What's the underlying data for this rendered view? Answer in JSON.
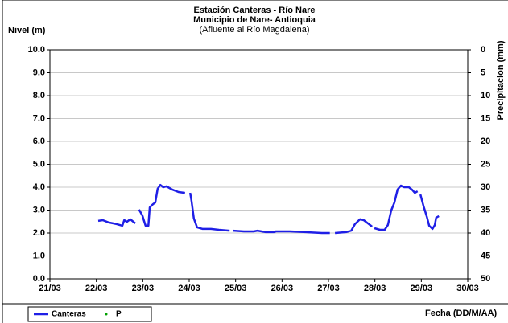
{
  "chart_data": {
    "type": "line",
    "title": "Estación Canteras - Río Nare",
    "subtitle": "Municipio de Nare- Antioquia",
    "subtitle2": "(Afluente al Río Magdalena)",
    "ylabel": "Nivel (m)",
    "y2label": "Precipitacion (mm)",
    "xlabel": "Fecha (DD/M/AA)",
    "xlim": [
      21,
      30
    ],
    "xticks": [
      {
        "value": 21,
        "label": "21/03"
      },
      {
        "value": 22,
        "label": "22/03"
      },
      {
        "value": 23,
        "label": "23/03"
      },
      {
        "value": 24,
        "label": "24/03"
      },
      {
        "value": 25,
        "label": "25/03"
      },
      {
        "value": 26,
        "label": "26/03"
      },
      {
        "value": 27,
        "label": "27/03"
      },
      {
        "value": 28,
        "label": "28/03"
      },
      {
        "value": 29,
        "label": "29/03"
      },
      {
        "value": 30,
        "label": "30/03"
      }
    ],
    "ylim": [
      0,
      10
    ],
    "yticks": [
      {
        "value": 0,
        "label": "0.0"
      },
      {
        "value": 1,
        "label": "1.0"
      },
      {
        "value": 2,
        "label": "2.0"
      },
      {
        "value": 3,
        "label": "3.0"
      },
      {
        "value": 4,
        "label": "4.0"
      },
      {
        "value": 5,
        "label": "5.0"
      },
      {
        "value": 6,
        "label": "6.0"
      },
      {
        "value": 7,
        "label": "7.0"
      },
      {
        "value": 8,
        "label": "8.0"
      },
      {
        "value": 9,
        "label": "9.0"
      },
      {
        "value": 10,
        "label": "10.0"
      }
    ],
    "y2lim": [
      50,
      0
    ],
    "y2ticks": [
      0,
      5,
      10,
      15,
      20,
      25,
      30,
      35,
      40,
      45,
      50
    ],
    "grid": true,
    "legend": "bottom-left",
    "x": [
      22.04,
      22.14,
      22.27,
      22.44,
      22.56,
      22.6,
      22.66,
      22.73,
      22.84,
      null,
      22.92,
      22.99,
      23.06,
      23.12,
      23.15,
      23.22,
      23.27,
      23.32,
      23.38,
      23.44,
      23.51,
      23.64,
      23.77,
      23.91,
      null,
      24.02,
      24.05,
      24.1,
      24.17,
      24.29,
      24.47,
      24.64,
      24.87,
      null,
      24.95,
      25.18,
      25.39,
      25.47,
      25.65,
      25.82,
      25.87,
      26.17,
      26.51,
      26.86,
      27.03,
      null,
      27.14,
      27.38,
      27.49,
      27.57,
      27.68,
      27.76,
      27.87,
      27.94,
      null,
      27.99,
      28.11,
      28.21,
      28.28,
      28.35,
      28.42,
      28.49,
      28.56,
      28.63,
      28.73,
      28.8,
      28.86,
      28.92,
      null,
      28.98,
      29.05,
      29.12,
      29.17,
      29.24,
      29.29,
      29.32,
      29.38
    ],
    "series": [
      {
        "name": "Canteras",
        "color": "#1f1fe6",
        "values": [
          2.53,
          2.56,
          2.46,
          2.39,
          2.32,
          2.56,
          2.49,
          2.6,
          2.42,
          null,
          3.02,
          2.77,
          2.32,
          2.32,
          3.12,
          3.26,
          3.33,
          3.93,
          4.1,
          4.0,
          4.04,
          3.89,
          3.79,
          3.75,
          null,
          3.75,
          3.4,
          2.63,
          2.25,
          2.18,
          2.18,
          2.14,
          2.1,
          null,
          2.1,
          2.07,
          2.07,
          2.1,
          2.04,
          2.04,
          2.07,
          2.07,
          2.04,
          2.0,
          2.0,
          null,
          2.0,
          2.04,
          2.1,
          2.39,
          2.6,
          2.56,
          2.39,
          2.28,
          null,
          2.21,
          2.14,
          2.14,
          2.35,
          2.98,
          3.33,
          3.9,
          4.07,
          4.0,
          4.0,
          3.89,
          3.75,
          3.82,
          null,
          3.68,
          3.16,
          2.7,
          2.32,
          2.18,
          2.35,
          2.67,
          2.74
        ]
      },
      {
        "name": "P",
        "color": "#00a000"
      }
    ]
  }
}
